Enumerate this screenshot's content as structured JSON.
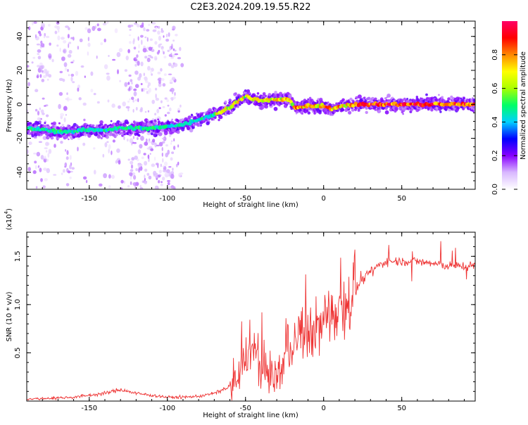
{
  "title": "C2E3.2024.209.19.55.R22",
  "chart_data": [
    {
      "type": "heatmap",
      "xlabel": "Height of straight line (km)",
      "ylabel": "Frequency (Hz)",
      "xlim": [
        -190,
        97
      ],
      "ylim": [
        -50,
        49
      ],
      "xticks": [
        -150,
        -100,
        -50,
        0,
        50
      ],
      "yticks": [
        -40,
        -20,
        0,
        20,
        40
      ],
      "colorbar": {
        "label": "Normalized spectral amplitude",
        "range": [
          0,
          1
        ],
        "ticks": [
          "0.0",
          "0.2",
          "0.4",
          "0.6",
          "0.8"
        ],
        "colors": [
          "#ffffff",
          "#d9b8ff",
          "#8800ff",
          "#0000ff",
          "#00d0ff",
          "#00ff66",
          "#aaff00",
          "#ffff00",
          "#ff8800",
          "#ff0000",
          "#ff0066"
        ]
      },
      "ridge": {
        "x": [
          -190,
          -180,
          -170,
          -160,
          -150,
          -140,
          -130,
          -120,
          -110,
          -100,
          -90,
          -80,
          -70,
          -60,
          -55,
          -50,
          -45,
          -40,
          -30,
          -22,
          -18,
          -10,
          0,
          5,
          10,
          20,
          30,
          50,
          70,
          97
        ],
        "y": [
          -14,
          -15,
          -16,
          -16,
          -15,
          -15,
          -14,
          -14,
          -14,
          -13,
          -12,
          -9,
          -6,
          -2,
          2,
          5,
          3,
          2,
          3,
          3,
          -2,
          -1,
          -1,
          -3,
          -1,
          0,
          0,
          0,
          0,
          0
        ]
      },
      "grid": false
    },
    {
      "type": "line",
      "xlabel": "Height of straight line (km)",
      "ylabel": "SNR (10 * v/v)",
      "scale_label": "(x10",
      "scale_exp": "4",
      "scale_close": ")",
      "xlim": [
        -190,
        97
      ],
      "ylim": [
        0,
        1.75
      ],
      "xticks": [
        -150,
        -100,
        -50,
        0,
        50
      ],
      "yticks": [
        0.5,
        1.0,
        1.5
      ],
      "line_color": "#ee3333",
      "grid": false,
      "envelope": {
        "x": [
          -190,
          -160,
          -140,
          -130,
          -120,
          -100,
          -90,
          -80,
          -70,
          -60,
          -55,
          -50,
          -45,
          -40,
          -30,
          -20,
          -10,
          0,
          10,
          15,
          20,
          30,
          40,
          50,
          60,
          80,
          97
        ],
        "y": [
          0.02,
          0.04,
          0.08,
          0.12,
          0.08,
          0.04,
          0.04,
          0.05,
          0.08,
          0.15,
          0.2,
          0.45,
          0.55,
          0.35,
          0.25,
          0.6,
          0.7,
          0.8,
          1.0,
          1.05,
          1.15,
          1.35,
          1.45,
          1.45,
          1.45,
          1.4,
          1.4
        ]
      }
    }
  ]
}
